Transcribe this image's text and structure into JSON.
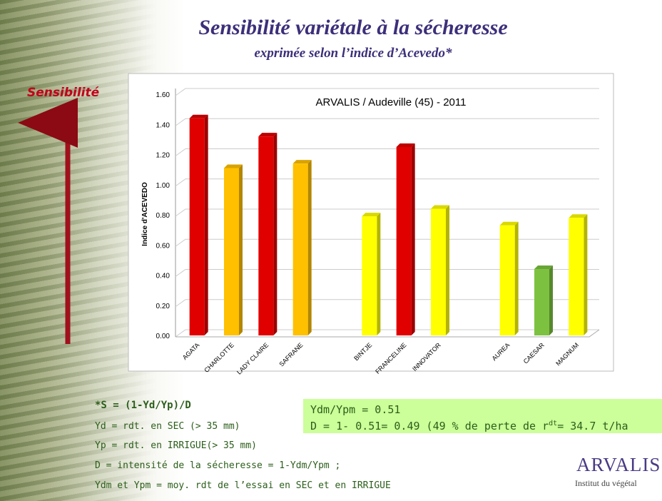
{
  "header": {
    "title": "Sensibilité variétale à la sécheresse",
    "subtitle": "exprimée selon l’indice d’Acevedo*"
  },
  "side_label": "Sensibilité",
  "chart_data": {
    "type": "bar",
    "annotation": "ARVALIS / Audeville (45) - 2011",
    "y_label": "Indice d'ACEVEDO",
    "categories": [
      "AGATA",
      "CHARLOTTE",
      "LADY CLAIRE",
      "SAFRANE",
      null,
      "BINTJE",
      "FRANCELINE",
      "INNOVATOR",
      null,
      "AUREA",
      "CAESAR",
      "MAGNUM"
    ],
    "values": [
      1.44,
      1.11,
      1.32,
      1.14,
      null,
      0.79,
      1.25,
      0.84,
      null,
      0.73,
      0.44,
      0.78
    ],
    "colors": [
      "#e00000",
      "#ffc000",
      "#e00000",
      "#ffc000",
      null,
      "#ffff00",
      "#e00000",
      "#ffff00",
      null,
      "#ffff00",
      "#7cc240",
      "#ffff00"
    ],
    "ylim": [
      0,
      1.6
    ],
    "yticks": [
      {
        "value": 0,
        "label": "0.00"
      },
      {
        "value": 0.2,
        "label": "0.20"
      },
      {
        "value": 0.4,
        "label": "0.40"
      },
      {
        "value": 0.6,
        "label": "0.60"
      },
      {
        "value": 0.8,
        "label": "0.80"
      },
      {
        "value": 1,
        "label": "1.00"
      },
      {
        "value": 1.2,
        "label": "1.20"
      },
      {
        "value": 1.4,
        "label": "1.40"
      },
      {
        "value": 1.6,
        "label": "1.60"
      }
    ],
    "grid": true
  },
  "notes": [
    "*S = (1-Yd/Yp)/D",
    "Yd = rdt. en SEC (> 35 mm)",
    "Yp = rdt. en IRRIGUE(> 35 mm)",
    "D = intensité de la sécheresse = 1-Ydm/Ypm ;",
    "Ydm et Ypm = moy. rdt de l’essai en SEC et en IRRIGUE"
  ],
  "result_box": {
    "line1": "Ydm/Ypm = 0.51",
    "line2": [
      "D = 1- 0.51= 0.49 (49 % de perte de r",
      "dt",
      "= 34.7 t/ha"
    ]
  },
  "logo": {
    "name": "ARVALIS",
    "tagline": "Institut du végétal"
  }
}
